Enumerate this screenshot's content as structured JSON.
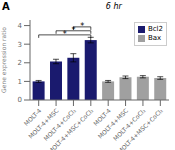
{
  "chart_data": {
    "type": "bar",
    "title": "6 hr",
    "panel_label": "A",
    "ylabel": "Gene expression ratio",
    "categories": [
      "MOLT-4",
      "MOLT-4+MSC",
      "MOLT-4+CoCl₂",
      "MOLT-4+MSC+CoCl₂",
      "MOLT-4",
      "MOLT-4+MSC",
      "MOLT-4+CoCl₂",
      "MOLT-4+MSC+CoCl₂"
    ],
    "series": [
      {
        "name": "Bcl2",
        "color": "#1a1a6e",
        "values": [
          1.0,
          2.07,
          2.27,
          3.22,
          null,
          null,
          null,
          null
        ],
        "errors": [
          0.05,
          0.12,
          0.22,
          0.15,
          null,
          null,
          null,
          null
        ]
      },
      {
        "name": "Bax",
        "color": "#a0a0a0",
        "values": [
          null,
          null,
          null,
          null,
          1.0,
          1.22,
          1.25,
          1.18
        ],
        "errors": [
          null,
          null,
          null,
          null,
          0.05,
          0.07,
          0.06,
          0.07
        ]
      }
    ],
    "ylim": [
      0,
      4.3
    ],
    "yticks": [
      0,
      1,
      2,
      3,
      4
    ],
    "grid": false,
    "legend": "upper right",
    "annotations": [
      {
        "text": "*",
        "x": [
          0,
          3
        ],
        "y": 3.5
      },
      {
        "text": "*",
        "x": [
          1,
          3
        ],
        "y": 3.72
      },
      {
        "text": "*",
        "x": [
          2,
          3
        ],
        "y": 3.93
      }
    ]
  }
}
